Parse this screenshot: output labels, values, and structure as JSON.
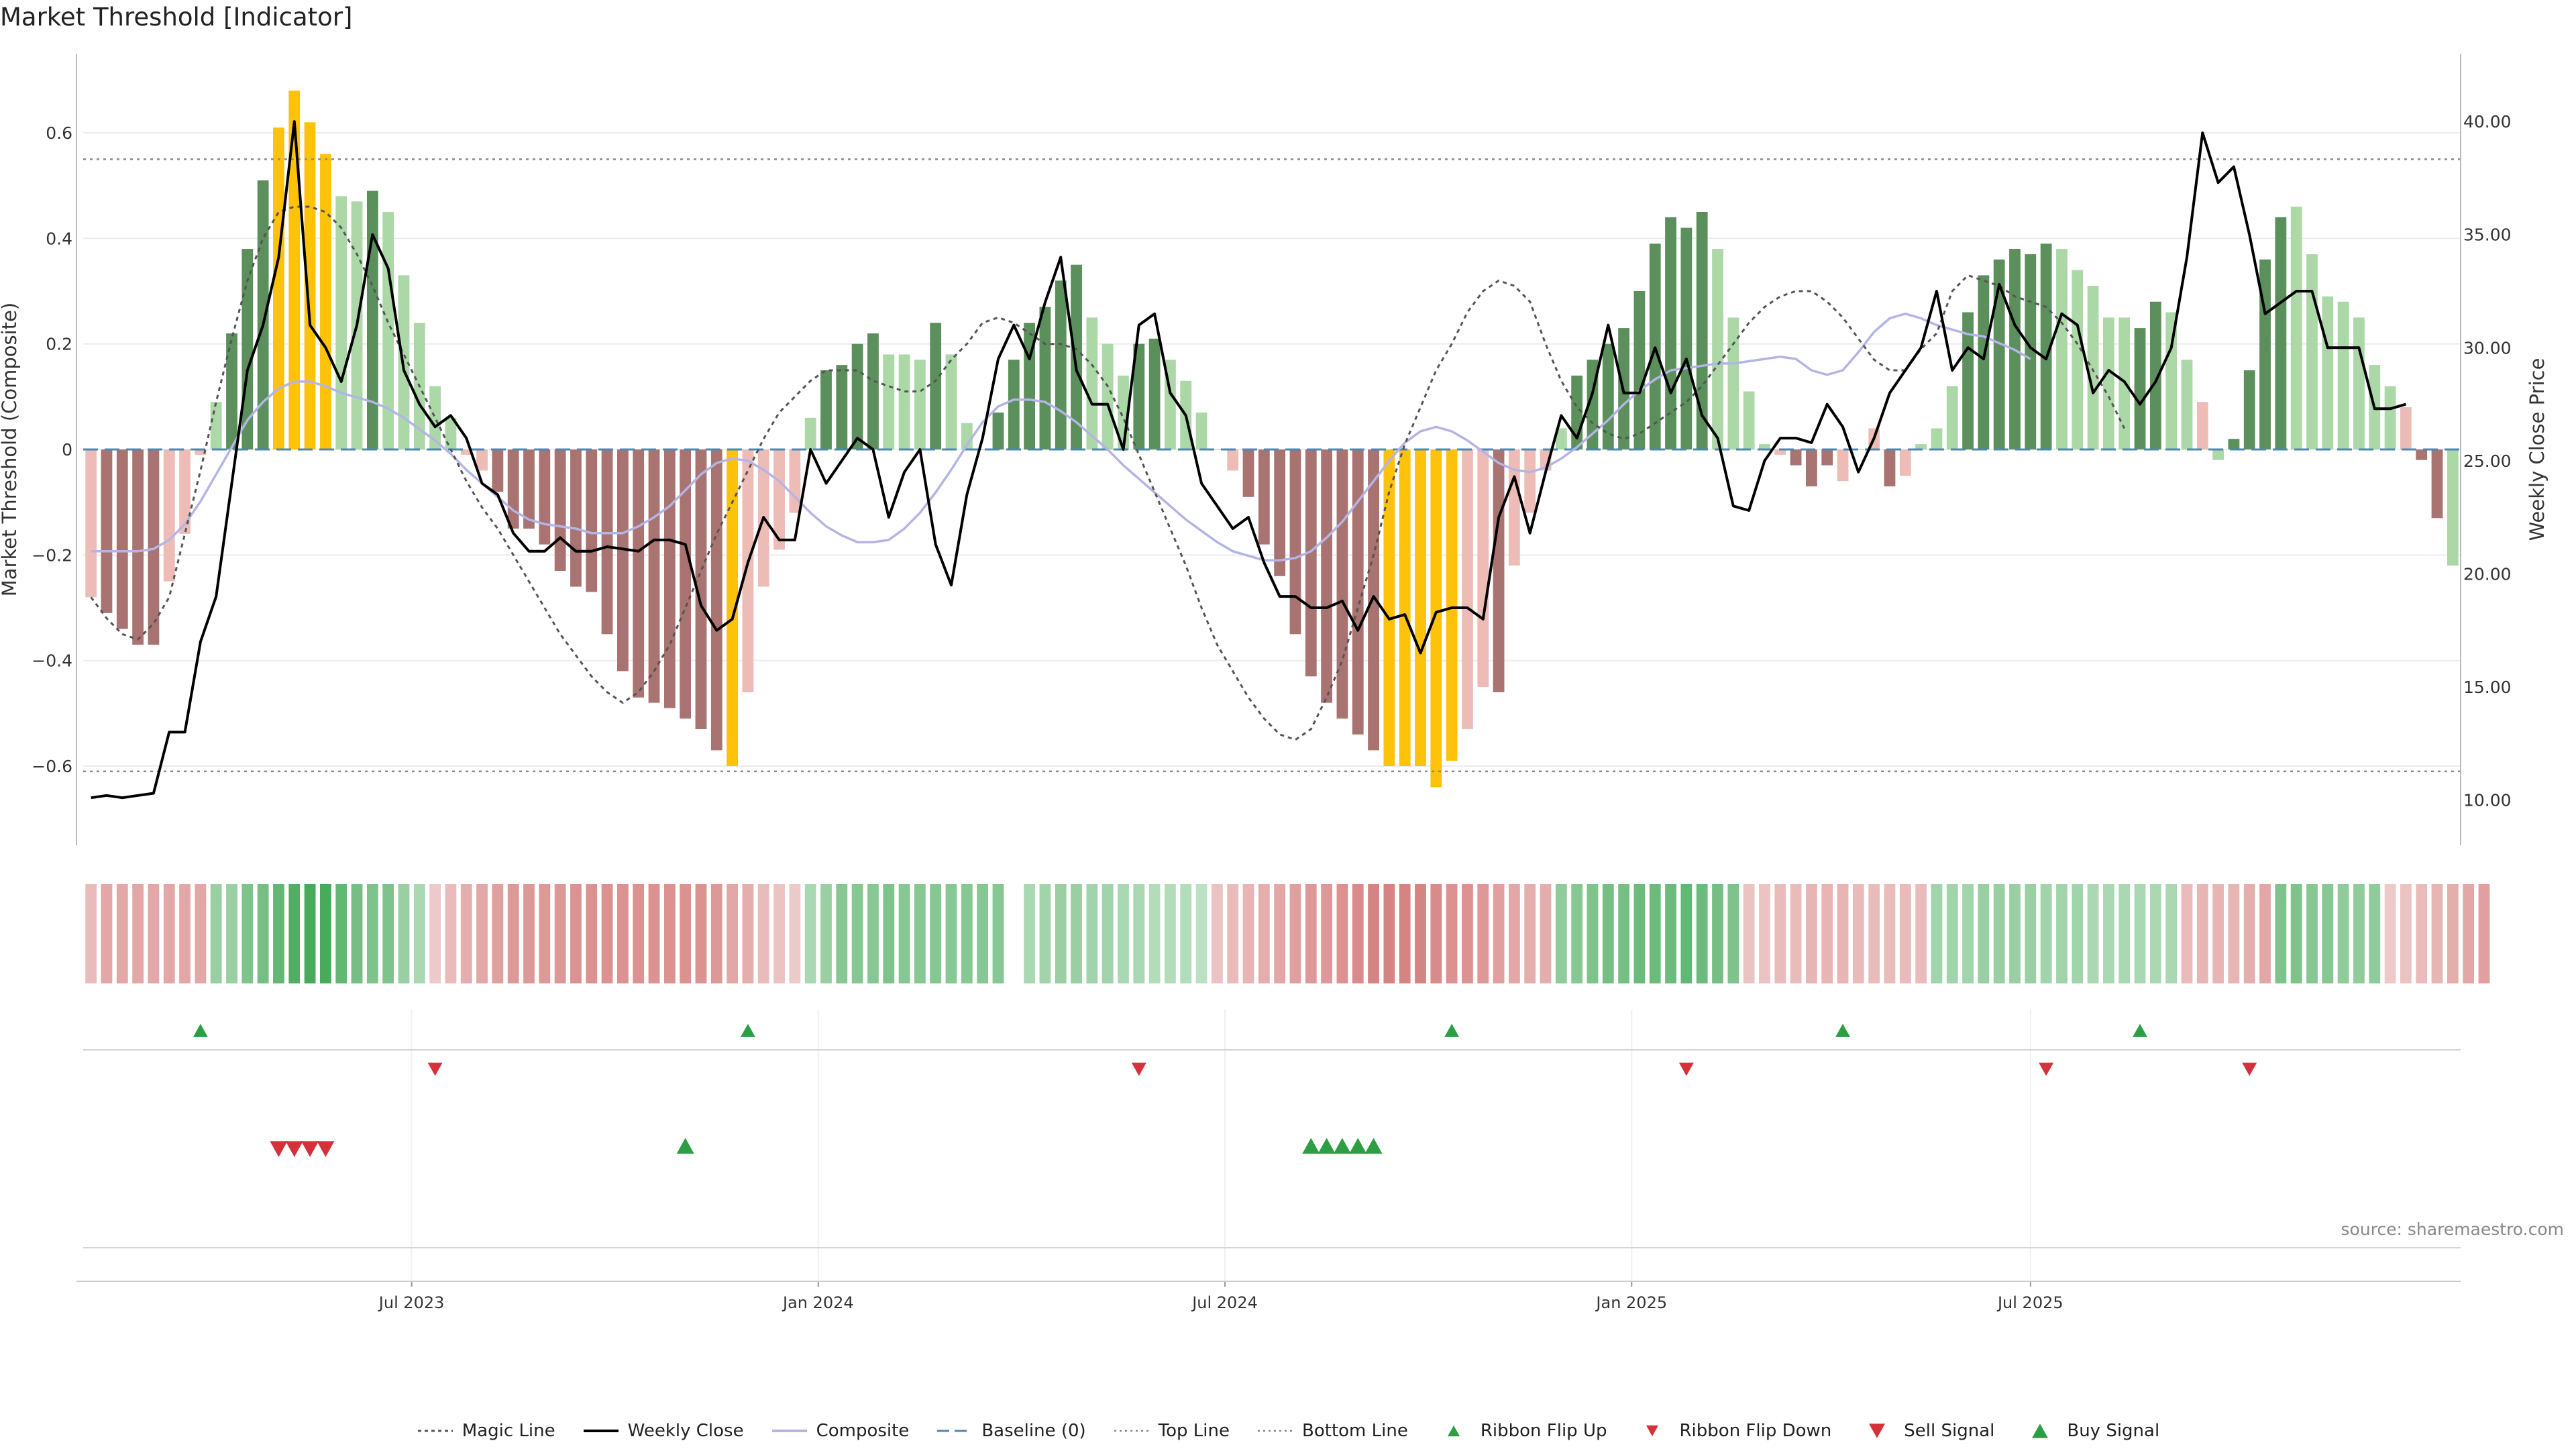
{
  "title": "Market Threshold [Indicator]",
  "source": "source: sharemaestro.com",
  "colors": {
    "pos_strong": "#5b8f5b",
    "pos_weak": "#acd8a8",
    "neg_strong": "#a87370",
    "neg_weak": "#eebcb6",
    "extreme": "#ffc20a",
    "weekly_close": "#000000",
    "composite": "#b4b4e6",
    "magic": "#555555",
    "baseline": "#4a88b8",
    "threshold": "#888888",
    "up_marker": "#2e9e44",
    "down_marker": "#d6303a"
  },
  "chart_data": {
    "type": "bar",
    "left_axis": {
      "label": "Market Threshold (Composite)",
      "ylim": [
        -0.75,
        0.75
      ],
      "ticks": [
        -0.6,
        -0.4,
        -0.2,
        0,
        0.2,
        0.4,
        0.6
      ],
      "tick_labels": [
        "−0.6",
        "−0.4",
        "−0.2",
        "0",
        "0.2",
        "0.4",
        "0.6"
      ]
    },
    "right_axis": {
      "label": "Weekly Close Price",
      "ylim": [
        8.0,
        43.0
      ],
      "ticks": [
        10,
        15,
        20,
        25,
        30,
        35,
        40
      ],
      "tick_labels": [
        "10.00",
        "15.00",
        "20.00",
        "25.00",
        "30.00",
        "35.00",
        "40.00"
      ]
    },
    "x_ticks": [
      {
        "week": 21,
        "label": "Jul 2023"
      },
      {
        "week": 47,
        "label": "Jan 2024"
      },
      {
        "week": 73,
        "label": "Jul 2024"
      },
      {
        "week": 99,
        "label": "Jan 2025"
      },
      {
        "week": 124.5,
        "label": "Jul 2025"
      }
    ],
    "top_line": 0.55,
    "bottom_line": -0.61,
    "baseline": 0,
    "composite": [
      -0.28,
      -0.31,
      -0.34,
      -0.37,
      -0.37,
      -0.25,
      -0.16,
      -0.01,
      0.09,
      0.22,
      0.38,
      0.51,
      0.61,
      0.68,
      0.62,
      0.56,
      0.48,
      0.47,
      0.49,
      0.45,
      0.33,
      0.24,
      0.12,
      0.06,
      -0.01,
      -0.04,
      -0.08,
      -0.15,
      -0.15,
      -0.18,
      -0.23,
      -0.26,
      -0.27,
      -0.35,
      -0.42,
      -0.47,
      -0.48,
      -0.49,
      -0.51,
      -0.53,
      -0.57,
      -0.6,
      -0.46,
      -0.26,
      -0.19,
      -0.12,
      0.06,
      0.15,
      0.16,
      0.2,
      0.22,
      0.18,
      0.18,
      0.17,
      0.24,
      0.18,
      0.05,
      0,
      0.07,
      0.17,
      0.24,
      0.27,
      0.32,
      0.35,
      0.25,
      0.2,
      0.14,
      0.2,
      0.21,
      0.17,
      0.13,
      0.07,
      0,
      -0.04,
      -0.09,
      -0.18,
      -0.24,
      -0.35,
      -0.43,
      -0.48,
      -0.51,
      -0.54,
      -0.57,
      -0.6,
      -0.6,
      -0.6,
      -0.64,
      -0.59,
      -0.53,
      -0.45,
      -0.46,
      -0.22,
      -0.12,
      -0.04,
      0.04,
      0.14,
      0.17,
      0.2,
      0.23,
      0.3,
      0.39,
      0.44,
      0.42,
      0.45,
      0.38,
      0.25,
      0.11,
      0.01,
      -0.01,
      -0.03,
      -0.07,
      -0.03,
      -0.06,
      0,
      0.04,
      -0.07,
      -0.05,
      0.01,
      0.04,
      0.12,
      0.26,
      0.33,
      0.36,
      0.38,
      0.37,
      0.39,
      0.38,
      0.34,
      0.31,
      0.25,
      0.25,
      0.23,
      0.28,
      0.26,
      0.17,
      0.09,
      -0.02,
      0.02,
      0.15,
      0.36,
      0.44,
      0.46,
      0.37,
      0.29,
      0.28,
      0.25,
      0.16,
      0.12,
      0.08,
      -0.02,
      -0.13,
      -0.22
    ],
    "composite_style": [
      "nw",
      "ns",
      "ns",
      "ns",
      "ns",
      "nw",
      "nw",
      "nw",
      "pw",
      "ps",
      "ps",
      "ps",
      "ex",
      "ex",
      "ex",
      "ex",
      "pw",
      "pw",
      "ps",
      "pw",
      "pw",
      "pw",
      "pw",
      "pw",
      "nw",
      "nw",
      "ns",
      "ns",
      "ns",
      "ns",
      "ns",
      "ns",
      "ns",
      "ns",
      "ns",
      "ns",
      "ns",
      "ns",
      "ns",
      "ns",
      "ns",
      "ex",
      "nw",
      "nw",
      "nw",
      "nw",
      "pw",
      "ps",
      "ps",
      "ps",
      "ps",
      "pw",
      "pw",
      "pw",
      "ps",
      "pw",
      "pw",
      "pw",
      "ps",
      "ps",
      "ps",
      "ps",
      "ps",
      "ps",
      "pw",
      "pw",
      "pw",
      "ps",
      "ps",
      "pw",
      "pw",
      "pw",
      "nw",
      "nw",
      "ns",
      "ns",
      "ns",
      "ns",
      "ns",
      "ns",
      "ns",
      "ns",
      "ns",
      "ex",
      "ex",
      "ex",
      "ex",
      "ex",
      "nw",
      "nw",
      "ns",
      "nw",
      "nw",
      "nw",
      "pw",
      "ps",
      "ps",
      "ps",
      "ps",
      "ps",
      "ps",
      "ps",
      "ps",
      "ps",
      "pw",
      "pw",
      "pw",
      "pw",
      "nw",
      "ns",
      "ns",
      "ns",
      "nw",
      "nw",
      "nw",
      "ns",
      "nw",
      "pw",
      "pw",
      "pw",
      "ps",
      "ps",
      "ps",
      "ps",
      "ps",
      "ps",
      "pw",
      "pw",
      "pw",
      "pw",
      "pw",
      "ps",
      "ps",
      "pw",
      "pw",
      "nw",
      "pw",
      "ps",
      "ps",
      "ps",
      "ps",
      "pw",
      "pw",
      "pw",
      "pw",
      "pw",
      "pw",
      "pw",
      "nw",
      "ns",
      "ns"
    ],
    "weekly_close": [
      10.1,
      10.2,
      10.1,
      10.2,
      10.3,
      13,
      13,
      17,
      19,
      24,
      29,
      31,
      34,
      40,
      31,
      30,
      28.5,
      31,
      35,
      33.5,
      29,
      27.5,
      26.5,
      27,
      26,
      24,
      23.5,
      21.8,
      21,
      21,
      21.6,
      21,
      21,
      21.2,
      21.1,
      21,
      21.5,
      21.5,
      21.3,
      18.6,
      17.5,
      18,
      20.5,
      22.5,
      21.5,
      21.5,
      25.5,
      24,
      25,
      26,
      25.5,
      22.5,
      24.5,
      25.5,
      21.3,
      19.5,
      23.5,
      26,
      29.5,
      31,
      29.5,
      32,
      34,
      29,
      27.5,
      27.5,
      25.5,
      31,
      31.5,
      28,
      27,
      24,
      23,
      22,
      22.5,
      20.5,
      19,
      19,
      18.5,
      18.5,
      18.8,
      17.5,
      19,
      18,
      18.2,
      16.5,
      18.3,
      18.5,
      18.5,
      18,
      22.5,
      24.3,
      21.8,
      24.5,
      27,
      26,
      28,
      31,
      28,
      28,
      30,
      28,
      29.5,
      27,
      26,
      23,
      22.8,
      25,
      26,
      26,
      25.8,
      27.5,
      26.5,
      24.5,
      26,
      28,
      29,
      30,
      32.5,
      29,
      30,
      29.5,
      32.8,
      31,
      30,
      29.5,
      31.5,
      31,
      28,
      29,
      28.5,
      27.5,
      28.5,
      30,
      34,
      39.5,
      37.3,
      38,
      35,
      31.5,
      32,
      32.5,
      32.5,
      30,
      30,
      30,
      27.3,
      27.3,
      27.5
    ],
    "magic_line": [
      -0.28,
      -0.32,
      -0.35,
      -0.36,
      -0.33,
      -0.28,
      -0.16,
      -0.04,
      0.09,
      0.21,
      0.32,
      0.4,
      0.45,
      0.46,
      0.46,
      0.45,
      0.42,
      0.37,
      0.31,
      0.24,
      0.18,
      0.12,
      0.06,
      0,
      -0.06,
      -0.11,
      -0.15,
      -0.2,
      -0.25,
      -0.3,
      -0.35,
      -0.39,
      -0.43,
      -0.46,
      -0.48,
      -0.46,
      -0.42,
      -0.37,
      -0.3,
      -0.23,
      -0.16,
      -0.1,
      -0.04,
      0.02,
      0.07,
      0.1,
      0.13,
      0.15,
      0.15,
      0.15,
      0.13,
      0.12,
      0.11,
      0.11,
      0.13,
      0.17,
      0.2,
      0.24,
      0.25,
      0.24,
      0.22,
      0.2,
      0.2,
      0.19,
      0.16,
      0.12,
      0.06,
      -0.01,
      -0.08,
      -0.15,
      -0.22,
      -0.3,
      -0.37,
      -0.42,
      -0.47,
      -0.51,
      -0.54,
      -0.55,
      -0.53,
      -0.47,
      -0.4,
      -0.3,
      -0.2,
      -0.08,
      0.01,
      0.08,
      0.15,
      0.2,
      0.26,
      0.3,
      0.32,
      0.31,
      0.28,
      0.2,
      0.13,
      0.08,
      0.05,
      0.03,
      0.02,
      0.03,
      0.05,
      0.07,
      0.09,
      0.12,
      0.16,
      0.2,
      0.24,
      0.27,
      0.29,
      0.3,
      0.3,
      0.28,
      0.25,
      0.21,
      0.17,
      0.15,
      0.15,
      0.19,
      0.22,
      0.3,
      0.33,
      0.32,
      0.31,
      0.29,
      0.28,
      0.27,
      0.24,
      0.2,
      0.15,
      0.1,
      0.04
    ],
    "composite_line_price": [
      21,
      21,
      21,
      21,
      21.1,
      21.5,
      22.2,
      23.2,
      24.4,
      25.6,
      26.8,
      27.6,
      28.2,
      28.5,
      28.5,
      28.3,
      28,
      27.8,
      27.6,
      27.3,
      26.9,
      26.4,
      25.9,
      25.3,
      24.6,
      24,
      23.4,
      22.8,
      22.4,
      22.2,
      22.1,
      22,
      21.8,
      21.8,
      21.8,
      22.1,
      22.5,
      23,
      23.7,
      24.4,
      24.9,
      25.1,
      25,
      24.6,
      24.1,
      23.4,
      22.7,
      22.1,
      21.7,
      21.4,
      21.4,
      21.5,
      22,
      22.7,
      23.6,
      24.6,
      25.7,
      26.7,
      27.4,
      27.7,
      27.7,
      27.6,
      27.2,
      26.7,
      26.1,
      25.5,
      24.8,
      24.2,
      23.6,
      23,
      22.4,
      21.9,
      21.4,
      21,
      20.8,
      20.6,
      20.6,
      20.7,
      21,
      21.6,
      22.3,
      23.2,
      24.1,
      25,
      25.8,
      26.3,
      26.5,
      26.3,
      25.9,
      25.4,
      24.9,
      24.6,
      24.5,
      24.7,
      25.1,
      25.6,
      26.2,
      26.8,
      27.5,
      28.1,
      28.6,
      29,
      29.1,
      29.2,
      29.3,
      29.3,
      29.4,
      29.5,
      29.6,
      29.5,
      29,
      28.8,
      29,
      29.8,
      30.7,
      31.3,
      31.5,
      31.3,
      31,
      30.8,
      30.6,
      30.5,
      30.2,
      29.9,
      29.5
    ],
    "ribbon_fill": [
      -0.3,
      -0.45,
      -0.45,
      -0.45,
      -0.45,
      -0.45,
      -0.45,
      -0.45,
      0.4,
      0.4,
      0.55,
      0.6,
      0.7,
      0.8,
      0.85,
      0.85,
      0.7,
      0.6,
      0.55,
      0.55,
      0.4,
      0.3,
      -0.2,
      -0.3,
      -0.4,
      -0.45,
      -0.5,
      -0.55,
      -0.55,
      -0.55,
      -0.55,
      -0.6,
      -0.6,
      -0.6,
      -0.6,
      -0.6,
      -0.6,
      -0.6,
      -0.6,
      -0.6,
      -0.55,
      -0.45,
      -0.4,
      -0.3,
      -0.25,
      -0.2,
      0.3,
      0.4,
      0.5,
      0.5,
      0.5,
      0.55,
      0.5,
      0.5,
      0.5,
      0.5,
      0.5,
      0.5,
      0.5,
      null,
      0.3,
      0.35,
      0.4,
      0.4,
      0.35,
      0.35,
      0.3,
      0.3,
      0.25,
      0.25,
      0.25,
      0.2,
      -0.25,
      -0.3,
      -0.35,
      -0.4,
      -0.45,
      -0.5,
      -0.55,
      -0.55,
      -0.6,
      -0.65,
      -0.7,
      -0.7,
      -0.7,
      -0.7,
      -0.65,
      -0.6,
      -0.6,
      -0.55,
      -0.5,
      -0.45,
      -0.4,
      -0.4,
      0.45,
      0.5,
      0.55,
      0.6,
      0.6,
      0.65,
      0.65,
      0.65,
      0.7,
      0.65,
      0.6,
      0.55,
      -0.25,
      -0.25,
      -0.3,
      -0.3,
      -0.35,
      -0.35,
      -0.35,
      -0.3,
      -0.3,
      -0.3,
      -0.3,
      -0.3,
      0.35,
      0.35,
      0.35,
      0.4,
      0.4,
      0.4,
      0.4,
      0.35,
      0.35,
      0.35,
      0.3,
      0.3,
      0.3,
      0.3,
      0.3,
      0.3,
      -0.3,
      -0.35,
      -0.35,
      -0.35,
      -0.4,
      -0.45,
      0.55,
      0.55,
      0.5,
      0.5,
      0.45,
      0.45,
      0.45,
      -0.2,
      -0.25,
      -0.3,
      -0.35,
      -0.4,
      -0.45,
      -0.5
    ],
    "ribbon_flip_up_weeks": [
      7,
      42,
      87,
      112,
      131
    ],
    "ribbon_flip_down_weeks": [
      22,
      67,
      102,
      125,
      138
    ],
    "sell_signal_weeks": [
      12,
      13,
      14,
      15
    ],
    "buy_signal_weeks": [
      38,
      78,
      79,
      80,
      81,
      82
    ]
  },
  "legend": [
    {
      "label": "Magic Line",
      "icon": "dotted-line"
    },
    {
      "label": "Weekly Close",
      "icon": "solid-line"
    },
    {
      "label": "Composite",
      "icon": "lavender-line"
    },
    {
      "label": "Baseline (0)",
      "icon": "dashed-line"
    },
    {
      "label": "Top Line",
      "icon": "dotted-line-light"
    },
    {
      "label": "Bottom Line",
      "icon": "dotted-line-light"
    },
    {
      "label": "Ribbon Flip Up",
      "icon": "triangle-up"
    },
    {
      "label": "Ribbon Flip Down",
      "icon": "triangle-down"
    },
    {
      "label": "Sell Signal",
      "icon": "triangle-down-large"
    },
    {
      "label": "Buy Signal",
      "icon": "triangle-up-large"
    }
  ]
}
